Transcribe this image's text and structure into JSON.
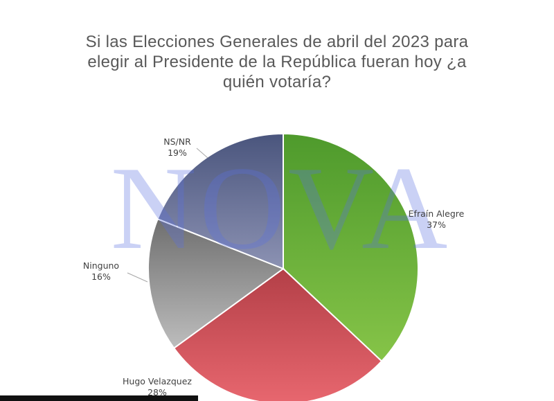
{
  "title_lines": [
    "Si las Elecciones Generales de abril del 2023 para",
    "elegir al  Presidente de la República fueran hoy ¿a",
    "quién votaría?"
  ],
  "watermark": "NOVA",
  "chart_data": {
    "type": "pie",
    "title": "Si las Elecciones Generales de abril del 2023 para elegir al  Presidente de la República fueran hoy ¿a quién votaría?",
    "slices": [
      {
        "name": "Efraín Alegre",
        "value": 37,
        "label": "37%",
        "color": "#6ab43a"
      },
      {
        "name": "Hugo Velazquez",
        "value": 28,
        "label": "28%",
        "color": "#d9555f"
      },
      {
        "name": "Ninguno",
        "value": 16,
        "label": "16%",
        "color": "#8f8f8f"
      },
      {
        "name": "NS/NR",
        "value": 19,
        "label": "19%",
        "color": "#5c6a9c"
      }
    ],
    "start_angle_deg": 0,
    "direction": "clockwise",
    "legend": "none"
  }
}
